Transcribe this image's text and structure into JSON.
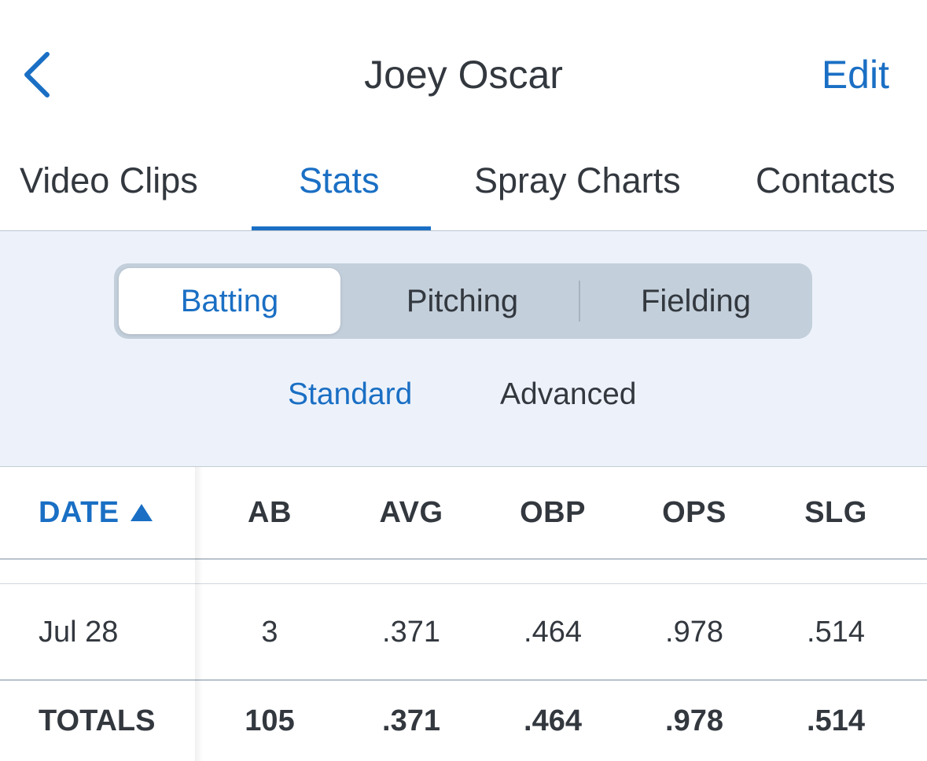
{
  "header": {
    "title": "Joey Oscar",
    "edit_label": "Edit"
  },
  "tabs": [
    {
      "label": "Video Clips"
    },
    {
      "label": "Stats",
      "active": true
    },
    {
      "label": "Spray Charts"
    },
    {
      "label": "Contacts"
    }
  ],
  "segments": [
    {
      "label": "Batting",
      "active": true
    },
    {
      "label": "Pitching"
    },
    {
      "label": "Fielding"
    }
  ],
  "subtabs": [
    {
      "label": "Standard",
      "active": true
    },
    {
      "label": "Advanced"
    }
  ],
  "table": {
    "columns": [
      "DATE",
      "AB",
      "AVG",
      "OBP",
      "OPS",
      "SLG"
    ],
    "sort_icon": "triangle-up-icon",
    "rows": [
      {
        "date": "Jul 28",
        "ab": "3",
        "avg": ".371",
        "obp": ".464",
        "ops": ".978",
        "slg": ".514"
      }
    ],
    "totals": {
      "label": "TOTALS",
      "ab": "105",
      "avg": ".371",
      "obp": ".464",
      "ops": ".978",
      "slg": ".514"
    }
  },
  "colors": {
    "accent": "#1a6fc4",
    "text": "#33383f",
    "filter_bg": "#edf2fa",
    "segment_bg": "#c3cfdb"
  }
}
